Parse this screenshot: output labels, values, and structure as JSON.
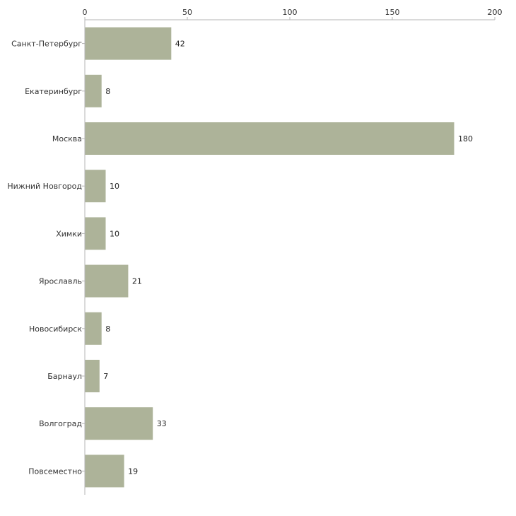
{
  "chart_data": {
    "type": "bar",
    "orientation": "horizontal",
    "categories": [
      "Санкт-Петербург",
      "Екатеринбург",
      "Москва",
      "Нижний Новгород",
      "Химки",
      "Ярославль",
      "Новосибирск",
      "Барнаул",
      "Волгоград",
      "Повсеместно"
    ],
    "values": [
      42,
      8,
      180,
      10,
      10,
      21,
      8,
      7,
      33,
      19
    ],
    "value_labels": [
      "42",
      "8",
      "180",
      "10",
      "10",
      "21",
      "8",
      "7",
      "33",
      "19"
    ],
    "xlim": [
      0,
      200
    ],
    "xticks": [
      0,
      50,
      100,
      150,
      200
    ],
    "xtick_labels": [
      "0",
      "50",
      "100",
      "150",
      "200"
    ],
    "axis_position": "top",
    "grid": false,
    "title": "",
    "xlabel": "",
    "ylabel": ""
  },
  "colors": {
    "bar": "#adb399",
    "axis": "#b5b5b5",
    "text": "#333333"
  }
}
